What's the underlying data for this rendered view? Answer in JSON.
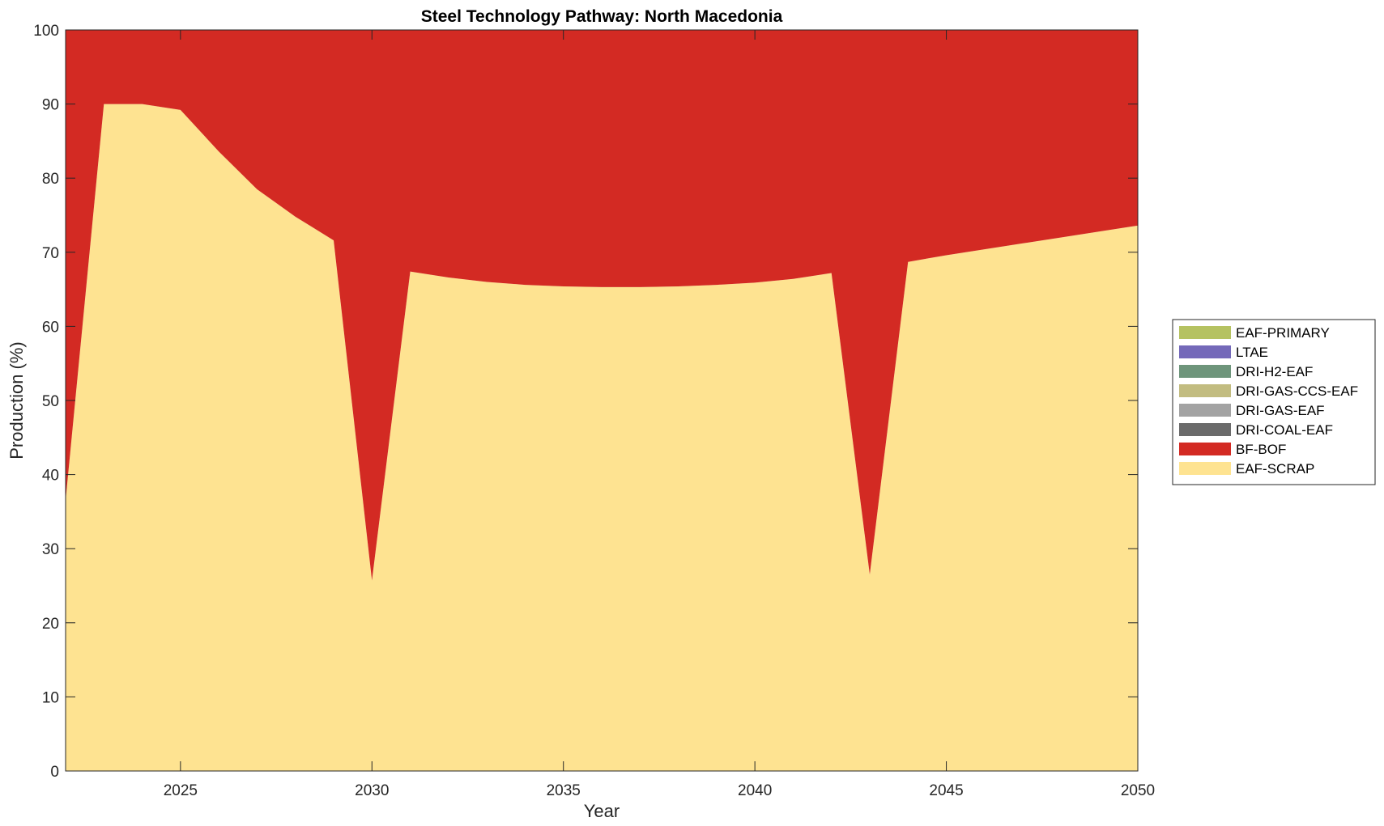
{
  "chart_data": {
    "type": "area",
    "stacked": true,
    "title": "Steel Technology Pathway: North Macedonia",
    "xlabel": "Year",
    "ylabel": "Production (%)",
    "xlim": [
      2022,
      2050
    ],
    "ylim": [
      0,
      100
    ],
    "xticks": [
      2025,
      2030,
      2035,
      2040,
      2045,
      2050
    ],
    "yticks": [
      0,
      10,
      20,
      30,
      40,
      50,
      60,
      70,
      80,
      90,
      100
    ],
    "grid": false,
    "legend_position": "right",
    "x": [
      2022,
      2023,
      2024,
      2025,
      2026,
      2027,
      2028,
      2029,
      2030,
      2031,
      2032,
      2033,
      2034,
      2035,
      2036,
      2037,
      2038,
      2039,
      2040,
      2041,
      2042,
      2043,
      2044,
      2045,
      2046,
      2047,
      2048,
      2049,
      2050
    ],
    "series": [
      {
        "name": "EAF-SCRAP",
        "color": "#FEE391",
        "values": [
          36.5,
          90,
          90,
          89.2,
          83.6,
          78.5,
          74.8,
          71.6,
          25.7,
          67.4,
          66.6,
          66.0,
          65.6,
          65.4,
          65.3,
          65.3,
          65.4,
          65.6,
          65.9,
          66.4,
          67.2,
          26.5,
          68.7,
          69.6,
          70.4,
          71.2,
          72.0,
          72.8,
          73.6
        ]
      },
      {
        "name": "BF-BOF",
        "color": "#D32A23",
        "values": [
          63.5,
          10,
          10,
          10.8,
          16.4,
          21.5,
          25.2,
          28.4,
          74.3,
          32.6,
          33.4,
          34.0,
          34.4,
          34.6,
          34.7,
          34.7,
          34.6,
          34.4,
          34.1,
          33.6,
          32.8,
          73.5,
          31.3,
          30.4,
          29.6,
          28.8,
          28.0,
          27.2,
          26.4
        ]
      },
      {
        "name": "DRI-COAL-EAF",
        "color": "#6B6B6B",
        "values": [
          0,
          0,
          0,
          0,
          0,
          0,
          0,
          0,
          0,
          0,
          0,
          0,
          0,
          0,
          0,
          0,
          0,
          0,
          0,
          0,
          0,
          0,
          0,
          0,
          0,
          0,
          0,
          0,
          0
        ]
      },
      {
        "name": "DRI-GAS-EAF",
        "color": "#A3A3A3",
        "values": [
          0,
          0,
          0,
          0,
          0,
          0,
          0,
          0,
          0,
          0,
          0,
          0,
          0,
          0,
          0,
          0,
          0,
          0,
          0,
          0,
          0,
          0,
          0,
          0,
          0,
          0,
          0,
          0,
          0
        ]
      },
      {
        "name": "DRI-GAS-CCS-EAF",
        "color": "#C2BC80",
        "values": [
          0,
          0,
          0,
          0,
          0,
          0,
          0,
          0,
          0,
          0,
          0,
          0,
          0,
          0,
          0,
          0,
          0,
          0,
          0,
          0,
          0,
          0,
          0,
          0,
          0,
          0,
          0,
          0,
          0
        ]
      },
      {
        "name": "DRI-H2-EAF",
        "color": "#6E957B",
        "values": [
          0,
          0,
          0,
          0,
          0,
          0,
          0,
          0,
          0,
          0,
          0,
          0,
          0,
          0,
          0,
          0,
          0,
          0,
          0,
          0,
          0,
          0,
          0,
          0,
          0,
          0,
          0,
          0,
          0
        ]
      },
      {
        "name": "LTAE",
        "color": "#7469B9",
        "values": [
          0,
          0,
          0,
          0,
          0,
          0,
          0,
          0,
          0,
          0,
          0,
          0,
          0,
          0,
          0,
          0,
          0,
          0,
          0,
          0,
          0,
          0,
          0,
          0,
          0,
          0,
          0,
          0,
          0
        ]
      },
      {
        "name": "EAF-PRIMARY",
        "color": "#B5C261",
        "values": [
          0,
          0,
          0,
          0,
          0,
          0,
          0,
          0,
          0,
          0,
          0,
          0,
          0,
          0,
          0,
          0,
          0,
          0,
          0,
          0,
          0,
          0,
          0,
          0,
          0,
          0,
          0,
          0,
          0
        ]
      }
    ],
    "legend_order": [
      "EAF-PRIMARY",
      "LTAE",
      "DRI-H2-EAF",
      "DRI-GAS-CCS-EAF",
      "DRI-GAS-EAF",
      "DRI-COAL-EAF",
      "BF-BOF",
      "EAF-SCRAP"
    ]
  }
}
